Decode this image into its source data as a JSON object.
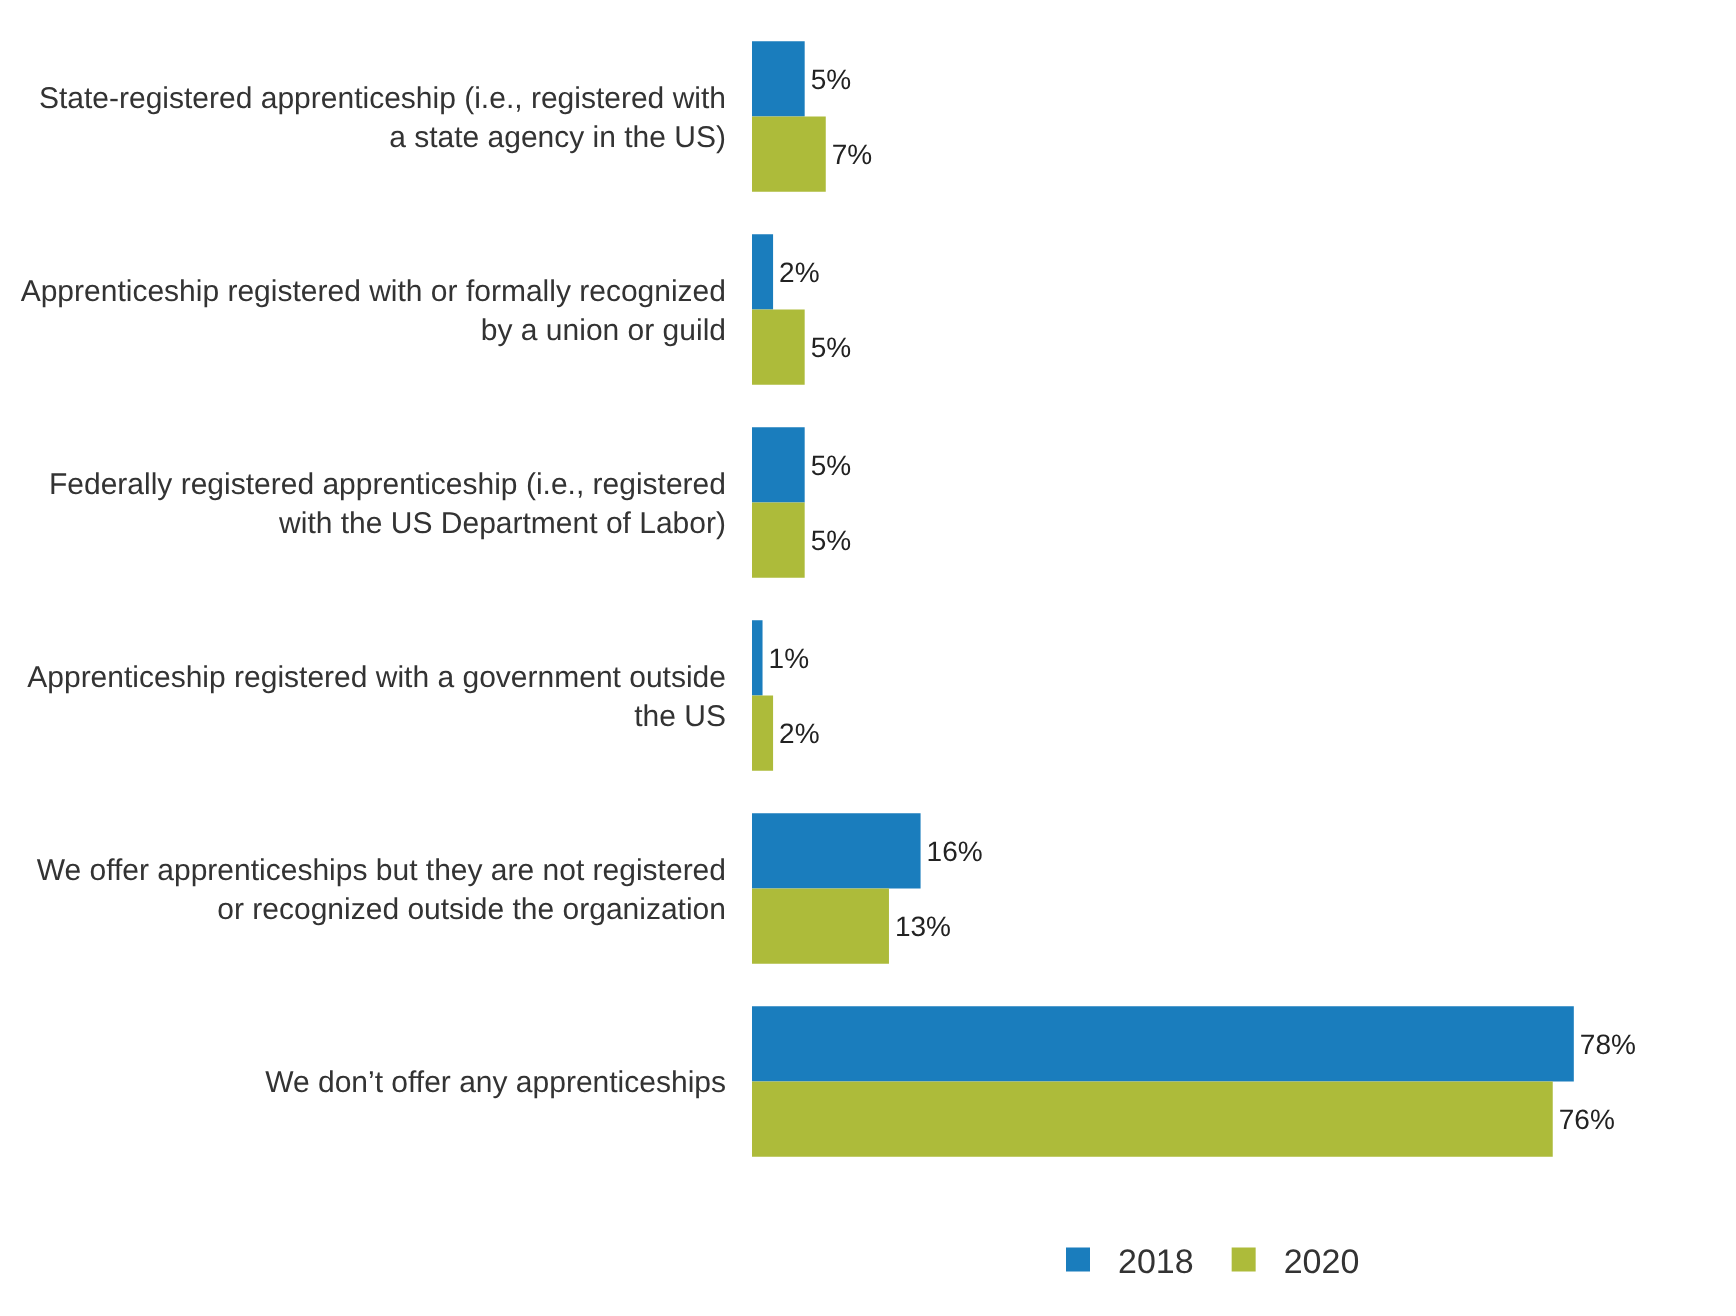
{
  "chart_data": {
    "type": "bar",
    "orientation": "horizontal",
    "categories": [
      "State-registered apprenticeship (i.e., registered with a state agency in the US)",
      "Apprenticeship registered with or formally recognized by a union or guild",
      "Federally registered apprenticeship (i.e., registered with the US Department of Labor)",
      "Apprenticeship registered with a government outside the US",
      "We offer apprenticeships but they are not registered or recognized outside the organization",
      "We don’t offer any apprenticeships"
    ],
    "series": [
      {
        "name": "2018",
        "color": "#1a7dbd",
        "values": [
          5,
          2,
          5,
          1,
          16,
          78
        ],
        "value_labels": [
          "5%",
          "2%",
          "5%",
          "1%",
          "16%",
          "78%"
        ]
      },
      {
        "name": "2020",
        "color": "#adbb3a",
        "values": [
          7,
          5,
          5,
          2,
          13,
          76
        ],
        "value_labels": [
          "7%",
          "5%",
          "5%",
          "2%",
          "13%",
          "76%"
        ]
      }
    ],
    "legend": "bottom",
    "tick_labels": "y"
  }
}
